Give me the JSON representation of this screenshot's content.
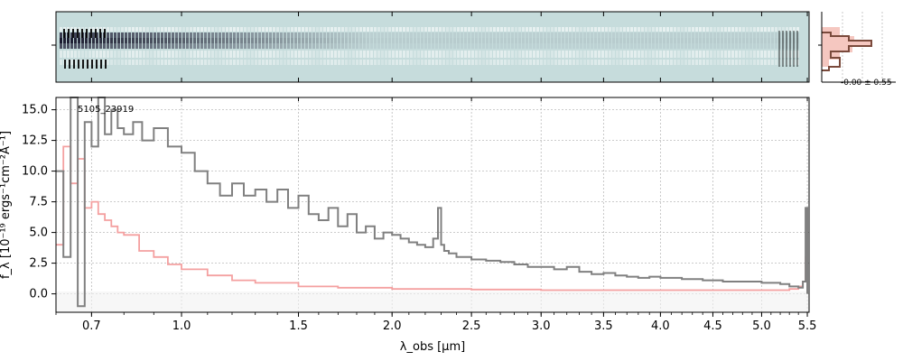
{
  "chart_data": [
    {
      "panel": "2d_spectrum",
      "type": "heatmap",
      "description_colormap": "bone_r",
      "colors": {
        "background": "#c6dcdc",
        "trace": "#1a1a2e"
      }
    },
    {
      "panel": "profile",
      "type": "line",
      "label": "-0.00 ± 0.55",
      "colors": {
        "line": "#7a4a3c",
        "fill": "#f5c7c0"
      }
    },
    {
      "panel": "1d_spectrum",
      "type": "line",
      "annotation": "5105_23919",
      "xlabel": "λ_obs [μm]",
      "ylabel": "f_λ [10⁻¹⁹ ergs⁻¹cm⁻²Å⁻¹]",
      "xscale": "power",
      "xlim": [
        0.6,
        5.52
      ],
      "ylim": [
        -1.5,
        16
      ],
      "grid": true,
      "xticks": [
        "0.7",
        "1.0",
        "1.5",
        "2.0",
        "2.5",
        "3.0",
        "3.5",
        "4.0",
        "4.5",
        "5.0",
        "5.5"
      ],
      "xtick_values": [
        0.7,
        1.0,
        1.5,
        2.0,
        2.5,
        3.0,
        3.5,
        4.0,
        4.5,
        5.0,
        5.5
      ],
      "yticks": [
        "0.0",
        "2.5",
        "5.0",
        "7.5",
        "10.0",
        "12.5",
        "15.0"
      ],
      "ytick_values": [
        0.0,
        2.5,
        5.0,
        7.5,
        10.0,
        12.5,
        15.0
      ],
      "series": [
        {
          "color": "#808080",
          "x": [
            0.6,
            0.62,
            0.64,
            0.66,
            0.68,
            0.7,
            0.72,
            0.74,
            0.76,
            0.78,
            0.8,
            0.83,
            0.86,
            0.9,
            0.95,
            1.0,
            1.05,
            1.1,
            1.15,
            1.2,
            1.25,
            1.3,
            1.35,
            1.4,
            1.45,
            1.5,
            1.55,
            1.6,
            1.65,
            1.7,
            1.75,
            1.8,
            1.85,
            1.9,
            1.95,
            2.0,
            2.05,
            2.1,
            2.15,
            2.2,
            2.25,
            2.28,
            2.3,
            2.32,
            2.35,
            2.4,
            2.5,
            2.6,
            2.7,
            2.8,
            2.9,
            3.0,
            3.1,
            3.2,
            3.3,
            3.4,
            3.5,
            3.6,
            3.7,
            3.8,
            3.9,
            4.0,
            4.2,
            4.4,
            4.6,
            4.8,
            5.0,
            5.2,
            5.3,
            5.4,
            5.45,
            5.48,
            5.5
          ],
          "y": [
            10.0,
            3.0,
            16.0,
            -1.0,
            14.0,
            12.0,
            16.0,
            13.0,
            15.0,
            13.5,
            13.0,
            14.0,
            12.5,
            13.5,
            12.0,
            11.5,
            10.0,
            9.0,
            8.0,
            9.0,
            8.0,
            8.5,
            7.5,
            8.5,
            7.0,
            8.0,
            6.5,
            6.0,
            7.0,
            5.5,
            6.5,
            5.0,
            5.5,
            4.5,
            5.0,
            4.8,
            4.5,
            4.2,
            4.0,
            3.8,
            4.5,
            7.0,
            4.0,
            3.5,
            3.3,
            3.0,
            2.8,
            2.7,
            2.6,
            2.4,
            2.2,
            2.2,
            2.0,
            2.2,
            1.8,
            1.6,
            1.7,
            1.5,
            1.4,
            1.3,
            1.4,
            1.3,
            1.2,
            1.1,
            1.0,
            1.0,
            0.9,
            0.8,
            0.6,
            0.5,
            1.0,
            7.0,
            0.0
          ]
        },
        {
          "color": "#f4a0a0",
          "x": [
            0.6,
            0.62,
            0.64,
            0.66,
            0.68,
            0.7,
            0.72,
            0.74,
            0.76,
            0.78,
            0.8,
            0.85,
            0.9,
            0.95,
            1.0,
            1.1,
            1.2,
            1.3,
            1.5,
            1.7,
            2.0,
            2.5,
            3.0,
            3.5,
            4.0,
            4.5,
            5.0,
            5.3,
            5.4,
            5.45,
            5.48,
            5.5
          ],
          "y": [
            4.0,
            12.0,
            9.0,
            11.0,
            7.0,
            7.5,
            6.5,
            6.0,
            5.5,
            5.0,
            4.8,
            3.5,
            3.0,
            2.4,
            2.0,
            1.5,
            1.1,
            0.9,
            0.6,
            0.5,
            0.4,
            0.35,
            0.3,
            0.3,
            0.3,
            0.3,
            0.3,
            0.4,
            0.6,
            1.0,
            3.0,
            1.5
          ]
        }
      ]
    }
  ]
}
